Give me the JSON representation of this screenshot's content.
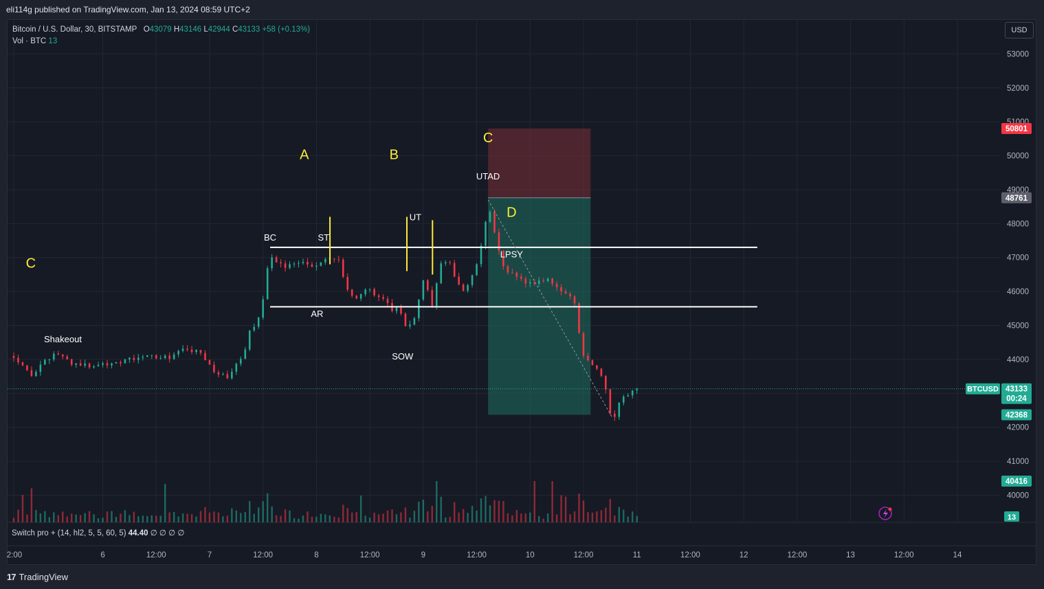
{
  "header": {
    "published": "eli114g published on TradingView.com, Jan 13, 2024 08:59 UTC+2"
  },
  "legend": {
    "symbol": "Bitcoin / U.S. Dollar, 30, BITSTAMP",
    "o_label": "O",
    "o_value": "43079",
    "h_label": "H",
    "h_value": "43146",
    "l_label": "L",
    "l_value": "42944",
    "c_label": "C",
    "c_value": "43133",
    "change": "+58 (+0.13%)",
    "vol_label": "Vol · BTC",
    "vol_value": "13"
  },
  "currency_button": "USD",
  "indicator": {
    "name": "Switch pro + (14, hl2, 5, 5, 60, 5)",
    "value": "44.40",
    "extras": "∅ ∅ ∅ ∅"
  },
  "footer": {
    "brand": "TradingView",
    "logo_mark": "17"
  },
  "colors": {
    "up": "#22ab94",
    "down": "#f23645",
    "annotation_yellow": "#ffeb3b",
    "target_zone": "#1f6f60",
    "stop_zone": "#7a2f38",
    "background": "#161a25"
  },
  "chart_data": {
    "type": "candlestick",
    "symbol": "BTCUSD",
    "timeframe": "30",
    "exchange": "BITSTAMP",
    "y_ticks": [
      40000,
      41000,
      42000,
      43000,
      44000,
      45000,
      46000,
      47000,
      48000,
      49000,
      50000,
      51000,
      52000,
      53000
    ],
    "ylim": [
      39200,
      54000
    ],
    "x_ticks": [
      "2:00",
      "6",
      "12:00",
      "7",
      "12:00",
      "8",
      "12:00",
      "9",
      "12:00",
      "10",
      "12:00",
      "11",
      "12:00",
      "12",
      "12:00",
      "13",
      "12:00",
      "14"
    ],
    "x_tick_times_days": [
      0,
      0.4167,
      0.6667,
      0.9167,
      1.1667,
      1.4167,
      1.6667,
      1.9167,
      2.1667,
      2.4167,
      2.6667,
      2.9167,
      3.1667,
      3.4167,
      3.6667,
      3.9167,
      4.1667,
      4.4167
    ],
    "price_path": [
      [
        0.0,
        44100
      ],
      [
        0.05,
        43800
      ],
      [
        0.09,
        43500
      ],
      [
        0.14,
        43900
      ],
      [
        0.2,
        44200
      ],
      [
        0.27,
        43900
      ],
      [
        0.35,
        43800
      ],
      [
        0.45,
        43900
      ],
      [
        0.55,
        44000
      ],
      [
        0.65,
        44100
      ],
      [
        0.72,
        44050
      ],
      [
        0.8,
        44300
      ],
      [
        0.87,
        44200
      ],
      [
        0.94,
        43600
      ],
      [
        1.0,
        43500
      ],
      [
        1.04,
        43800
      ],
      [
        1.07,
        44000
      ],
      [
        1.1,
        44800
      ],
      [
        1.13,
        45000
      ],
      [
        1.16,
        45500
      ],
      [
        1.18,
        46500
      ],
      [
        1.2,
        47000
      ],
      [
        1.23,
        46900
      ],
      [
        1.27,
        46700
      ],
      [
        1.33,
        46900
      ],
      [
        1.41,
        46700
      ],
      [
        1.47,
        47000
      ],
      [
        1.52,
        46900
      ],
      [
        1.56,
        46000
      ],
      [
        1.6,
        45800
      ],
      [
        1.65,
        46100
      ],
      [
        1.7,
        45900
      ],
      [
        1.74,
        45700
      ],
      [
        1.77,
        45400
      ],
      [
        1.8,
        45500
      ],
      [
        1.84,
        44900
      ],
      [
        1.88,
        45300
      ],
      [
        1.92,
        46500
      ],
      [
        1.96,
        45600
      ],
      [
        2.0,
        46800
      ],
      [
        2.04,
        46800
      ],
      [
        2.1,
        46000
      ],
      [
        2.14,
        46300
      ],
      [
        2.18,
        47100
      ],
      [
        2.2,
        47600
      ],
      [
        2.22,
        48700
      ],
      [
        2.26,
        47400
      ],
      [
        2.3,
        46500
      ],
      [
        2.34,
        46600
      ],
      [
        2.38,
        46300
      ],
      [
        2.44,
        46200
      ],
      [
        2.5,
        46400
      ],
      [
        2.56,
        46000
      ],
      [
        2.62,
        45800
      ],
      [
        2.66,
        44200
      ],
      [
        2.72,
        43800
      ],
      [
        2.76,
        43500
      ],
      [
        2.8,
        42100
      ],
      [
        2.84,
        42900
      ],
      [
        2.88,
        43000
      ],
      [
        2.93,
        43133
      ]
    ],
    "last_price": 43133,
    "countdown": "00:24",
    "price_label": "BTCUSD",
    "axis_badges": {
      "stop": 50801,
      "entry": 48761,
      "target": 42368,
      "last": 43133,
      "indicator_level": 40416,
      "volume": 13
    },
    "horizontal_levels": [
      47300,
      45550
    ],
    "range_start_x": 1.2,
    "range_end_x": 3.48,
    "vertical_markers": [
      {
        "x": 1.48,
        "y_from": 46800,
        "y_to": 48200
      },
      {
        "x": 1.84,
        "y_from": 46600,
        "y_to": 48200
      },
      {
        "x": 1.96,
        "y_from": 46500,
        "y_to": 48100
      }
    ],
    "long_short_box": {
      "x_from": 2.22,
      "x_to": 2.7,
      "stop": 50801,
      "entry": 48761,
      "target": 42368
    },
    "trend_dotted": {
      "from": [
        2.22,
        48700
      ],
      "to": [
        2.8,
        42300
      ]
    },
    "phase_labels": [
      {
        "text": "C",
        "x": 0.08,
        "y": 46700
      },
      {
        "text": "A",
        "x": 1.36,
        "y": 49900
      },
      {
        "text": "B",
        "x": 1.78,
        "y": 49900
      },
      {
        "text": "C",
        "x": 2.22,
        "y": 50400
      },
      {
        "text": "D",
        "x": 2.33,
        "y": 48200
      }
    ],
    "event_labels": [
      {
        "text": "Shakeout",
        "x": 0.23,
        "y": 44500
      },
      {
        "text": "BC",
        "x": 1.2,
        "y": 47500
      },
      {
        "text": "ST",
        "x": 1.45,
        "y": 47500
      },
      {
        "text": "AR",
        "x": 1.42,
        "y": 45250
      },
      {
        "text": "UT",
        "x": 1.88,
        "y": 48100
      },
      {
        "text": "SOW",
        "x": 1.82,
        "y": 44000
      },
      {
        "text": "UTAD",
        "x": 2.22,
        "y": 49300
      },
      {
        "text": "LPSY",
        "x": 2.33,
        "y": 47000
      }
    ]
  }
}
